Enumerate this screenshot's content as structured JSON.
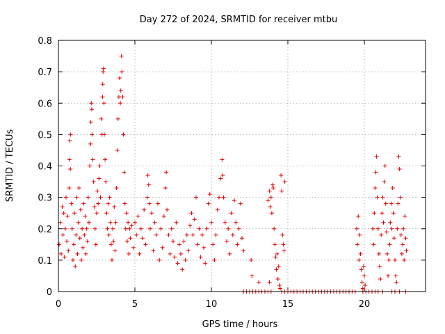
{
  "chart_data": {
    "type": "scatter",
    "title": "Day 272 of 2024, SRMTID for receiver mtbu",
    "xlabel": "GPS time / hours",
    "ylabel": "SRMTID / TECUs",
    "xlim": [
      0,
      24
    ],
    "ylim": [
      0,
      0.8
    ],
    "xticks": [
      0,
      5,
      10,
      15,
      20
    ],
    "yticks": [
      0,
      0.1,
      0.2,
      0.3,
      0.4,
      0.5,
      0.6,
      0.7,
      0.8
    ],
    "xtick_labels": [
      "0",
      "5",
      "10",
      "15",
      "20"
    ],
    "ytick_labels": [
      "0",
      "0.1",
      "0.2",
      "0.3",
      "0.4",
      "0.5",
      "0.6",
      "0.7",
      "0.8"
    ],
    "grid": true,
    "marker": "+",
    "color": "#e00000",
    "series": [
      {
        "name": "SRMTID",
        "points": [
          [
            0.05,
            0.15
          ],
          [
            0.12,
            0.22
          ],
          [
            0.18,
            0.12
          ],
          [
            0.25,
            0.27
          ],
          [
            0.3,
            0.18
          ],
          [
            0.35,
            0.25
          ],
          [
            0.4,
            0.11
          ],
          [
            0.45,
            0.2
          ],
          [
            0.5,
            0.3
          ],
          [
            0.55,
            0.16
          ],
          [
            0.6,
            0.24
          ],
          [
            0.65,
            0.13
          ],
          [
            0.7,
            0.33
          ],
          [
            0.72,
            0.42
          ],
          [
            0.75,
            0.48
          ],
          [
            0.78,
            0.39
          ],
          [
            0.8,
            0.5
          ],
          [
            0.85,
            0.28
          ],
          [
            0.9,
            0.2
          ],
          [
            0.95,
            0.1
          ],
          [
            1.0,
            0.15
          ],
          [
            1.05,
            0.25
          ],
          [
            1.1,
            0.08
          ],
          [
            1.15,
            0.18
          ],
          [
            1.2,
            0.3
          ],
          [
            1.25,
            0.12
          ],
          [
            1.3,
            0.22
          ],
          [
            1.35,
            0.33
          ],
          [
            1.4,
            0.17
          ],
          [
            1.45,
            0.26
          ],
          [
            1.5,
            0.1
          ],
          [
            1.55,
            0.2
          ],
          [
            1.6,
            0.14
          ],
          [
            1.65,
            0.28
          ],
          [
            1.7,
            0.18
          ],
          [
            1.75,
            0.24
          ],
          [
            1.8,
            0.12
          ],
          [
            1.85,
            0.2
          ],
          [
            1.9,
            0.16
          ],
          [
            1.95,
            0.3
          ],
          [
            2.0,
            0.22
          ],
          [
            2.05,
            0.4
          ],
          [
            2.1,
            0.47
          ],
          [
            2.12,
            0.54
          ],
          [
            2.15,
            0.6
          ],
          [
            2.18,
            0.58
          ],
          [
            2.2,
            0.5
          ],
          [
            2.25,
            0.42
          ],
          [
            2.3,
            0.35
          ],
          [
            2.35,
            0.27
          ],
          [
            2.4,
            0.2
          ],
          [
            2.45,
            0.15
          ],
          [
            2.5,
            0.25
          ],
          [
            2.55,
            0.32
          ],
          [
            2.6,
            0.28
          ],
          [
            2.65,
            0.36
          ],
          [
            2.7,
            0.4
          ],
          [
            2.75,
            0.3
          ],
          [
            2.8,
            0.55
          ],
          [
            2.85,
            0.5
          ],
          [
            2.88,
            0.62
          ],
          [
            2.9,
            0.66
          ],
          [
            2.92,
            0.7
          ],
          [
            2.95,
            0.71
          ],
          [
            2.98,
            0.6
          ],
          [
            3.0,
            0.5
          ],
          [
            3.05,
            0.42
          ],
          [
            3.1,
            0.35
          ],
          [
            3.15,
            0.25
          ],
          [
            3.2,
            0.2
          ],
          [
            3.25,
            0.28
          ],
          [
            3.3,
            0.18
          ],
          [
            3.35,
            0.3
          ],
          [
            3.4,
            0.22
          ],
          [
            3.45,
            0.15
          ],
          [
            3.5,
            0.1
          ],
          [
            3.55,
            0.2
          ],
          [
            3.6,
            0.16
          ],
          [
            3.65,
            0.27
          ],
          [
            3.7,
            0.13
          ],
          [
            3.75,
            0.22
          ],
          [
            3.8,
            0.33
          ],
          [
            3.85,
            0.45
          ],
          [
            3.9,
            0.55
          ],
          [
            3.95,
            0.62
          ],
          [
            4.0,
            0.68
          ],
          [
            4.05,
            0.6
          ],
          [
            4.08,
            0.64
          ],
          [
            4.12,
            0.75
          ],
          [
            4.15,
            0.7
          ],
          [
            4.2,
            0.62
          ],
          [
            4.25,
            0.5
          ],
          [
            4.3,
            0.38
          ],
          [
            4.35,
            0.28
          ],
          [
            4.4,
            0.2
          ],
          [
            4.45,
            0.25
          ],
          [
            4.5,
            0.16
          ],
          [
            4.55,
            0.22
          ],
          [
            4.6,
            0.12
          ],
          [
            4.65,
            0.2
          ],
          [
            4.7,
            0.17
          ],
          [
            4.8,
            0.21
          ],
          [
            4.9,
            0.14
          ],
          [
            5.0,
            0.22
          ],
          [
            5.1,
            0.18
          ],
          [
            5.2,
            0.24
          ],
          [
            5.3,
            0.12
          ],
          [
            5.4,
            0.2
          ],
          [
            5.5,
            0.17
          ],
          [
            5.6,
            0.26
          ],
          [
            5.7,
            0.15
          ],
          [
            5.8,
            0.3
          ],
          [
            5.85,
            0.37
          ],
          [
            5.9,
            0.34
          ],
          [
            5.95,
            0.28
          ],
          [
            6.0,
            0.2
          ],
          [
            6.1,
            0.25
          ],
          [
            6.2,
            0.13
          ],
          [
            6.3,
            0.22
          ],
          [
            6.4,
            0.18
          ],
          [
            6.5,
            0.28
          ],
          [
            6.6,
            0.1
          ],
          [
            6.7,
            0.2
          ],
          [
            6.8,
            0.14
          ],
          [
            6.9,
            0.24
          ],
          [
            7.0,
            0.33
          ],
          [
            7.05,
            0.38
          ],
          [
            7.1,
            0.26
          ],
          [
            7.2,
            0.18
          ],
          [
            7.3,
            0.12
          ],
          [
            7.4,
            0.2
          ],
          [
            7.5,
            0.16
          ],
          [
            7.6,
            0.11
          ],
          [
            7.7,
            0.22
          ],
          [
            7.8,
            0.09
          ],
          [
            7.9,
            0.15
          ],
          [
            8.0,
            0.12
          ],
          [
            8.1,
            0.07
          ],
          [
            8.2,
            0.16
          ],
          [
            8.3,
            0.1
          ],
          [
            8.4,
            0.18
          ],
          [
            8.5,
            0.13
          ],
          [
            8.6,
            0.21
          ],
          [
            8.7,
            0.25
          ],
          [
            8.8,
            0.18
          ],
          [
            8.9,
            0.23
          ],
          [
            9.0,
            0.3
          ],
          [
            9.1,
            0.15
          ],
          [
            9.2,
            0.2
          ],
          [
            9.3,
            0.11
          ],
          [
            9.4,
            0.18
          ],
          [
            9.5,
            0.14
          ],
          [
            9.6,
            0.09
          ],
          [
            9.7,
            0.2
          ],
          [
            9.8,
            0.28
          ],
          [
            9.9,
            0.31
          ],
          [
            10.0,
            0.22
          ],
          [
            10.1,
            0.15
          ],
          [
            10.2,
            0.1
          ],
          [
            10.3,
            0.18
          ],
          [
            10.4,
            0.26
          ],
          [
            10.5,
            0.3
          ],
          [
            10.6,
            0.36
          ],
          [
            10.7,
            0.42
          ],
          [
            10.75,
            0.37
          ],
          [
            10.8,
            0.3
          ],
          [
            10.9,
            0.22
          ],
          [
            11.0,
            0.16
          ],
          [
            11.1,
            0.2
          ],
          [
            11.2,
            0.12
          ],
          [
            11.3,
            0.25
          ],
          [
            11.4,
            0.18
          ],
          [
            11.5,
            0.29
          ],
          [
            11.6,
            0.22
          ],
          [
            11.7,
            0.15
          ],
          [
            11.8,
            0.2
          ],
          [
            11.9,
            0.28
          ],
          [
            12.0,
            0.17
          ],
          [
            12.1,
            0.13
          ],
          [
            12.1,
            0.0
          ],
          [
            12.3,
            0.0
          ],
          [
            12.5,
            0.0
          ],
          [
            12.7,
            0.0
          ],
          [
            12.9,
            0.0
          ],
          [
            13.1,
            0.0
          ],
          [
            13.3,
            0.0
          ],
          [
            13.5,
            0.0
          ],
          [
            13.7,
            0.0
          ],
          [
            13.9,
            0.0
          ],
          [
            12.6,
            0.1
          ],
          [
            12.65,
            0.05
          ],
          [
            13.1,
            0.03
          ],
          [
            13.8,
            0.03
          ],
          [
            13.7,
            0.29
          ],
          [
            13.8,
            0.32
          ],
          [
            13.85,
            0.27
          ],
          [
            13.9,
            0.3
          ],
          [
            13.95,
            0.25
          ],
          [
            14.0,
            0.34
          ],
          [
            14.05,
            0.33
          ],
          [
            14.1,
            0.2
          ],
          [
            14.15,
            0.15
          ],
          [
            14.2,
            0.11
          ],
          [
            14.25,
            0.07
          ],
          [
            14.3,
            0.12
          ],
          [
            14.35,
            0.04
          ],
          [
            14.4,
            0.08
          ],
          [
            14.45,
            0.02
          ],
          [
            14.5,
            0.01
          ],
          [
            14.55,
            0.37
          ],
          [
            14.6,
            0.32
          ],
          [
            14.65,
            0.18
          ],
          [
            14.7,
            0.15
          ],
          [
            14.75,
            0.13
          ],
          [
            14.8,
            0.35
          ],
          [
            14.6,
            0.0
          ],
          [
            14.8,
            0.0
          ],
          [
            15.0,
            0.0
          ],
          [
            15.2,
            0.0
          ],
          [
            15.4,
            0.0
          ],
          [
            15.6,
            0.0
          ],
          [
            15.8,
            0.0
          ],
          [
            16.0,
            0.0
          ],
          [
            16.2,
            0.0
          ],
          [
            16.4,
            0.0
          ],
          [
            16.6,
            0.0
          ],
          [
            16.8,
            0.0
          ],
          [
            17.0,
            0.0
          ],
          [
            17.2,
            0.0
          ],
          [
            17.4,
            0.0
          ],
          [
            17.6,
            0.0
          ],
          [
            17.8,
            0.0
          ],
          [
            18.0,
            0.0
          ],
          [
            18.2,
            0.0
          ],
          [
            18.4,
            0.0
          ],
          [
            18.6,
            0.0
          ],
          [
            18.8,
            0.0
          ],
          [
            19.0,
            0.0
          ],
          [
            19.2,
            0.0
          ],
          [
            19.4,
            0.0
          ],
          [
            19.5,
            0.2
          ],
          [
            19.55,
            0.15
          ],
          [
            19.6,
            0.24
          ],
          [
            19.65,
            0.1
          ],
          [
            19.7,
            0.18
          ],
          [
            19.75,
            0.12
          ],
          [
            19.8,
            0.07
          ],
          [
            19.85,
            0.03
          ],
          [
            19.9,
            0.01
          ],
          [
            19.95,
            0.08
          ],
          [
            20.0,
            0.05
          ],
          [
            20.05,
            0.02
          ],
          [
            19.9,
            0.0
          ],
          [
            20.1,
            0.0
          ],
          [
            20.3,
            0.0
          ],
          [
            20.5,
            0.0
          ],
          [
            20.55,
            0.2
          ],
          [
            20.6,
            0.15
          ],
          [
            20.65,
            0.25
          ],
          [
            20.7,
            0.33
          ],
          [
            20.75,
            0.38
          ],
          [
            20.8,
            0.43
          ],
          [
            20.85,
            0.3
          ],
          [
            20.9,
            0.2
          ],
          [
            20.95,
            0.12
          ],
          [
            21.0,
            0.08
          ],
          [
            21.05,
            0.04
          ],
          [
            21.1,
            0.18
          ],
          [
            21.15,
            0.25
          ],
          [
            21.2,
            0.3
          ],
          [
            21.25,
            0.22
          ],
          [
            21.3,
            0.35
          ],
          [
            21.35,
            0.4
          ],
          [
            21.4,
            0.28
          ],
          [
            21.45,
            0.19
          ],
          [
            21.5,
            0.12
          ],
          [
            21.55,
            0.05
          ],
          [
            21.6,
            0.1
          ],
          [
            21.65,
            0.15
          ],
          [
            21.7,
            0.22
          ],
          [
            21.75,
            0.28
          ],
          [
            21.8,
            0.2
          ],
          [
            21.85,
            0.33
          ],
          [
            21.9,
            0.25
          ],
          [
            21.95,
            0.17
          ],
          [
            22.0,
            0.1
          ],
          [
            22.05,
            0.05
          ],
          [
            22.1,
            0.03
          ],
          [
            22.15,
            0.2
          ],
          [
            22.2,
            0.28
          ],
          [
            22.25,
            0.43
          ],
          [
            22.3,
            0.39
          ],
          [
            22.35,
            0.3
          ],
          [
            22.4,
            0.18
          ],
          [
            22.45,
            0.12
          ],
          [
            22.5,
            0.15
          ],
          [
            22.55,
            0.2
          ],
          [
            22.6,
            0.1
          ],
          [
            22.65,
            0.24
          ],
          [
            22.7,
            0.17
          ],
          [
            22.75,
            0.13
          ],
          [
            20.7,
            0.0
          ],
          [
            20.9,
            0.0
          ],
          [
            21.2,
            0.0
          ],
          [
            21.8,
            0.0
          ],
          [
            22.0,
            0.0
          ],
          [
            22.3,
            0.0
          ],
          [
            22.7,
            0.0
          ]
        ]
      }
    ]
  }
}
